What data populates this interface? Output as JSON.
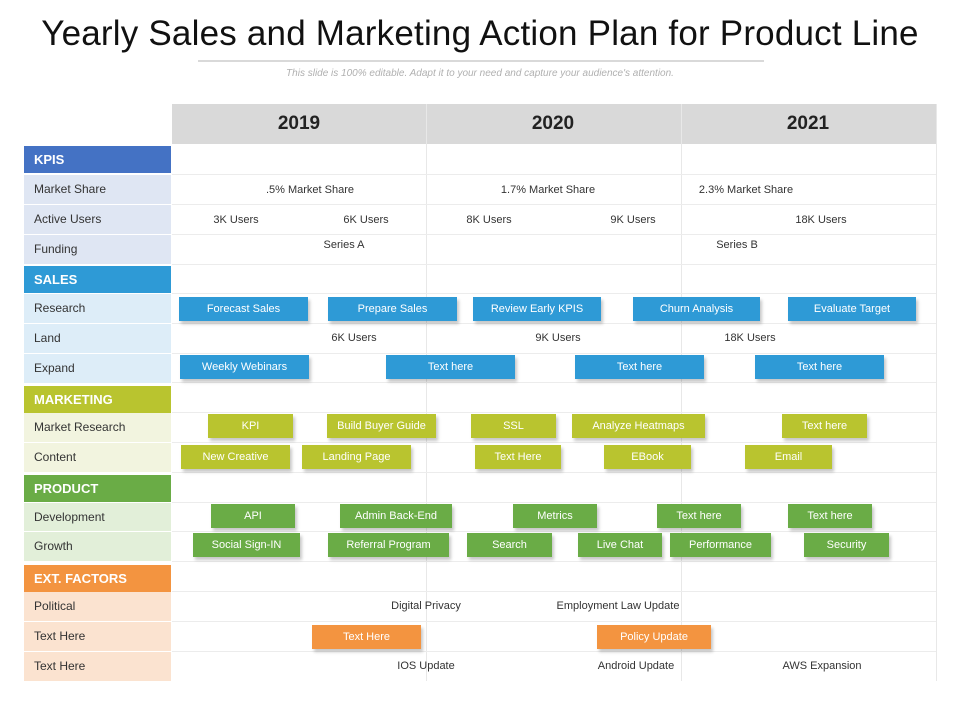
{
  "title": "Yearly Sales and Marketing Action Plan for Product Line",
  "subtitle": "This slide is 100% editable. Adapt it to your need and capture your audience's attention.",
  "years": [
    "2019",
    "2020",
    "2021"
  ],
  "colors": {
    "kpis": "#4472c4",
    "sales": "#2e9ad6",
    "marketing": "#b9c42f",
    "product": "#6aac46",
    "ext_factors": "#f39440"
  },
  "sections": {
    "kpis": {
      "title": "KPIS",
      "rows": [
        {
          "label": "Market Share",
          "texts": [
            ".5% Market Share",
            "1.7% Market Share",
            "2.3% Market Share"
          ]
        },
        {
          "label": "Active Users",
          "texts": [
            "3K Users",
            "6K Users",
            "8K Users",
            "9K Users",
            "18K Users"
          ]
        },
        {
          "label": "Funding",
          "texts": [
            "Series A",
            "Series B"
          ]
        }
      ]
    },
    "sales": {
      "title": "SALES",
      "rows": [
        {
          "label": "Research",
          "buttons": [
            "Forecast Sales",
            "Prepare Sales",
            "Review Early KPIS",
            "Churn Analysis",
            "Evaluate Target"
          ]
        },
        {
          "label": "Land",
          "texts": [
            "6K Users",
            "9K Users",
            "18K Users"
          ]
        },
        {
          "label": "Expand",
          "buttons": [
            "Weekly Webinars",
            "Text here",
            "Text here",
            "Text here"
          ]
        }
      ]
    },
    "marketing": {
      "title": "MARKETING",
      "rows": [
        {
          "label": "Market Research",
          "buttons": [
            "KPI",
            "Build Buyer Guide",
            "SSL",
            "Analyze Heatmaps",
            "Text here"
          ]
        },
        {
          "label": "Content",
          "buttons": [
            "New Creative",
            "Landing Page",
            "Text Here",
            "EBook",
            "Email"
          ]
        }
      ]
    },
    "product": {
      "title": "PRODUCT",
      "rows": [
        {
          "label": "Development",
          "buttons": [
            "API",
            "Admin Back-End",
            "Metrics",
            "Text here",
            "Text here"
          ]
        },
        {
          "label": "Growth",
          "buttons": [
            "Social Sign-IN",
            "Referral Program",
            "Search",
            "Live Chat",
            "Performance",
            "Security"
          ]
        }
      ]
    },
    "ext_factors": {
      "title": "EXT. FACTORS",
      "rows": [
        {
          "label": "Political",
          "texts": [
            "Digital  Privacy",
            "Employment  Law Update"
          ]
        },
        {
          "label": "Text Here",
          "buttons": [
            "Text Here",
            "Policy Update"
          ]
        },
        {
          "label": "Text Here",
          "texts": [
            "IOS Update",
            "Android Update",
            "AWS Expansion"
          ]
        }
      ]
    }
  }
}
